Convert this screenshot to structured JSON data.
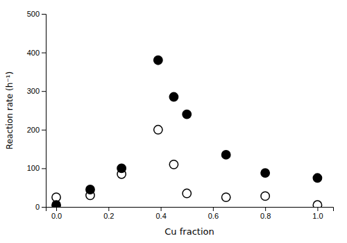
{
  "chart_data": {
    "type": "scatter",
    "xlabel": "Cu fraction",
    "ylabel": "Reaction rate (h⁻¹)",
    "xlim": [
      -0.04,
      1.06
    ],
    "ylim": [
      0,
      500
    ],
    "xticks": [
      {
        "value": 0,
        "label": "0.0"
      },
      {
        "value": 0.2,
        "label": "0.2"
      },
      {
        "value": 0.4,
        "label": "0.4"
      },
      {
        "value": 0.6,
        "label": "0.6"
      },
      {
        "value": 0.8,
        "label": "0.8"
      },
      {
        "value": 1.0,
        "label": "1.0"
      }
    ],
    "yticks": [
      0,
      100,
      200,
      300,
      400,
      500
    ],
    "series": [
      {
        "x": [
          0,
          0.13,
          0.25,
          0.39,
          0.45,
          0.5,
          0.65,
          0.8,
          1.0
        ],
        "values": [
          5,
          45,
          100,
          380,
          285,
          240,
          135,
          88,
          75
        ],
        "color": "#000000",
        "marker": "circle"
      },
      {
        "x": [
          0,
          0.13,
          0.25,
          0.39,
          0.45,
          0.5,
          0.65,
          0.8,
          1.0
        ],
        "values": [
          25,
          30,
          85,
          200,
          110,
          35,
          25,
          28,
          5
        ],
        "color": "#ffffff",
        "marker": "circle"
      }
    ]
  }
}
